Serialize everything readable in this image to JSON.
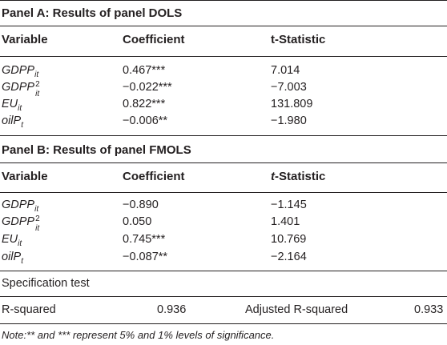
{
  "panel_a": {
    "title": "Panel A: Results of panel DOLS",
    "headers": {
      "variable": "Variable",
      "coefficient": "Coefficient",
      "tstat": "t-Statistic"
    },
    "rows": [
      {
        "var_base": "GDPP",
        "var_sub": "it",
        "coefficient": "0.467***",
        "tstat": "7.014"
      },
      {
        "var_base": "GDPP",
        "var_sup": "2",
        "var_sub": "it",
        "coefficient": "−0.022***",
        "tstat": "−7.003"
      },
      {
        "var_base": "EU",
        "var_sub": "it",
        "coefficient": "0.822***",
        "tstat": "131.809"
      },
      {
        "var_base": "oilP",
        "var_sub": "t",
        "coefficient": "−0.006**",
        "tstat": "−1.980"
      }
    ]
  },
  "panel_b": {
    "title": "Panel B: Results of panel FMOLS",
    "headers": {
      "variable": "Variable",
      "coefficient": "Coefficient",
      "tstat_italic": "t",
      "tstat_rest": "-Statistic"
    },
    "rows": [
      {
        "var_base": "GDPP",
        "var_sub": "it",
        "coefficient": "−0.890",
        "tstat": "−1.145"
      },
      {
        "var_base": "GDPP",
        "var_sup": "2",
        "var_sub": "it",
        "coefficient": "0.050",
        "tstat": "1.401"
      },
      {
        "var_base": "EU",
        "var_sub": "it",
        "coefficient": "0.745***",
        "tstat": "10.769"
      },
      {
        "var_base": "oilP",
        "var_sub": "t",
        "coefficient": "−0.087**",
        "tstat": "−2.164"
      }
    ]
  },
  "spec": {
    "label": "Specification test",
    "r2_label": "R-squared",
    "r2_value": "0.936",
    "adj_r2_label": "Adjusted R-squared",
    "adj_r2_value": "0.933"
  },
  "note": "Note:** and *** represent 5% and 1% levels of significance."
}
